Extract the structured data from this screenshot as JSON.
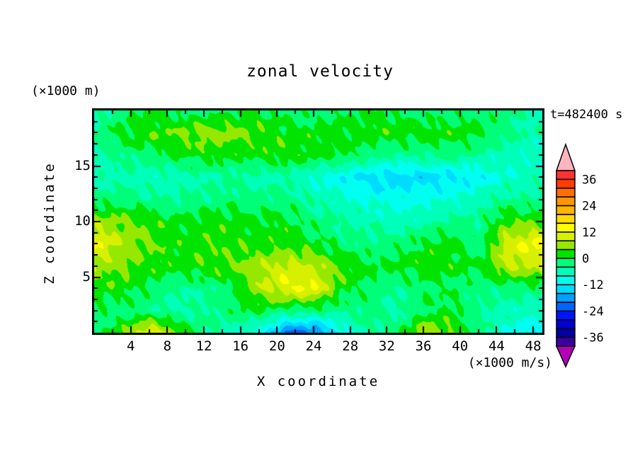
{
  "annotations": {
    "z_units": "(×1000 m)",
    "x_units": "(×1000 m/s)",
    "timestamp": "t=482400 s"
  },
  "chart_data": {
    "type": "heatmap",
    "title": "zonal velocity",
    "xlabel": "X coordinate",
    "ylabel": "Z coordinate",
    "xlim": [
      0,
      49
    ],
    "ylim": [
      0,
      20
    ],
    "x_ticks": {
      "major": [
        4,
        8,
        12,
        16,
        20,
        24,
        28,
        32,
        36,
        40,
        44,
        48
      ],
      "minor_step": 2
    },
    "y_ticks": {
      "major": [
        5,
        10,
        15
      ],
      "minor_step": 1
    },
    "background_color": "#FFFFFF",
    "frame_color": "#000000",
    "colorbar": {
      "levels_min": -40,
      "levels_step": 4,
      "tick_labels": [
        "36",
        "24",
        "12",
        "0",
        "-12",
        "-24",
        "-36"
      ],
      "label_boundaries": [
        1,
        4,
        7,
        10,
        13,
        16,
        19
      ],
      "colors_low_to_high": [
        "#3C00A0",
        "#0000A0",
        "#0000D2",
        "#0014FF",
        "#0064FF",
        "#00A0FF",
        "#00DCFF",
        "#00FFF0",
        "#00FFB9",
        "#00FF78",
        "#00E400",
        "#96E800",
        "#D7F000",
        "#FFFF00",
        "#FFDC00",
        "#FFB400",
        "#FF9600",
        "#FF6E00",
        "#FF3C00",
        "#FF3232"
      ],
      "over_color": "#FFB4BE",
      "under_color": "#B400B4"
    },
    "grid": {
      "x": [
        0,
        3,
        6,
        9,
        12,
        15,
        18,
        21,
        24,
        27,
        30,
        33,
        36,
        39,
        42,
        45,
        48
      ],
      "z_top_to_bottom": [
        20,
        18,
        16,
        14,
        12,
        10,
        8,
        6,
        4,
        2,
        0
      ],
      "values": [
        [
          -6,
          -1,
          1,
          -1,
          -2,
          -1,
          1,
          -2,
          -2,
          -1,
          1,
          -1,
          -2,
          -2,
          -1,
          -3,
          -6
        ],
        [
          -3,
          1,
          3,
          4,
          6,
          6,
          3,
          2,
          2,
          2,
          2,
          3,
          2,
          2,
          1,
          -2,
          -5
        ],
        [
          -5,
          -3,
          -1,
          1,
          2,
          1,
          2,
          3,
          2,
          1,
          -2,
          -4,
          -3,
          -2,
          -4,
          -6,
          -7
        ],
        [
          -6,
          -5,
          -7,
          -6,
          -5,
          -4,
          -6,
          -5,
          -8,
          -11,
          -13,
          -14,
          -14,
          -13,
          -11,
          -8,
          -6
        ],
        [
          -2,
          -2,
          -3,
          -4,
          -3,
          -2,
          -2,
          -2,
          -5,
          -7,
          -9,
          -10,
          -9,
          -8,
          -6,
          -3,
          -4
        ],
        [
          6,
          5,
          3,
          1,
          2,
          2,
          1,
          1,
          -2,
          -4,
          -5,
          -6,
          -5,
          -3,
          -3,
          3,
          4
        ],
        [
          13,
          7,
          4,
          2,
          3,
          3,
          2,
          2,
          1,
          -2,
          -3,
          -2,
          1,
          2,
          -3,
          10,
          13
        ],
        [
          7,
          5,
          3,
          2,
          3,
          4,
          7,
          10,
          8,
          4,
          1,
          1,
          2,
          2,
          0,
          8,
          9
        ],
        [
          2,
          2,
          -1,
          -4,
          -3,
          -1,
          7,
          12,
          13,
          2,
          -2,
          -4,
          -1,
          -1,
          -3,
          -2,
          -2
        ],
        [
          -1,
          -2,
          -3,
          -5,
          -4,
          -1,
          1,
          -2,
          -2,
          -3,
          -2,
          -5,
          -1,
          1,
          -3,
          -6,
          -7
        ],
        [
          -2,
          3,
          13,
          5,
          -3,
          -6,
          -10,
          -21,
          -21,
          -11,
          -4,
          -2,
          7,
          5,
          -3,
          -8,
          -11
        ]
      ]
    }
  }
}
